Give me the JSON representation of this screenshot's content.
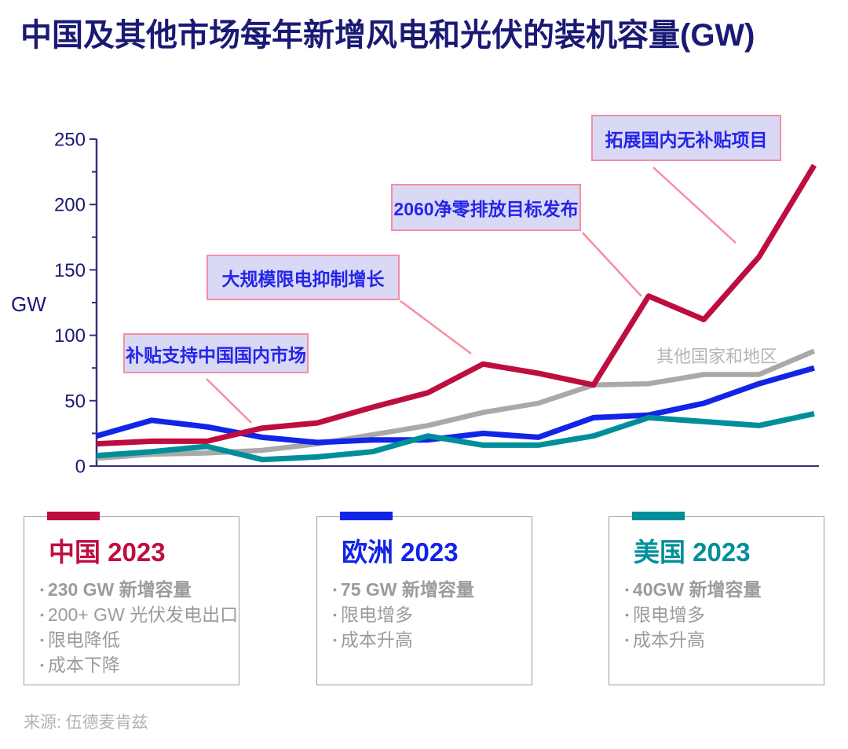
{
  "title": "中国及其他市场每年新增风电和光伏的装机容量(GW)",
  "source": "来源: 伍德麦肯兹",
  "colors": {
    "title_navy": "#1a1a75",
    "axis_navy": "#32327c",
    "china_red": "#be0d3f",
    "europe_blue": "#1224e8",
    "us_teal": "#008f9a",
    "other_gray": "#a9a9a9",
    "annotation_bg": "#d9d9f5",
    "annotation_border": "#f78da2",
    "annotation_text": "#2525e8",
    "leader_pink": "#f78da2",
    "card_text_gray": "#9b9b9b",
    "source_gray": "#b3b3b3"
  },
  "chart_data": {
    "type": "line",
    "title": "",
    "xlabel": "",
    "ylabel": "GW",
    "ylim": [
      0,
      250
    ],
    "y_major_ticks": [
      0,
      50,
      100,
      150,
      200,
      250
    ],
    "y_minor_tick_step": 25,
    "x_tick_labels_shown": false,
    "grid": false,
    "n_points": 14,
    "series": [
      {
        "name": "中国",
        "color": "#be0d3f",
        "values": [
          17,
          19,
          19,
          29,
          33,
          45,
          56,
          78,
          71,
          62,
          130,
          112,
          160,
          230
        ]
      },
      {
        "name": "欧洲",
        "color": "#1224e8",
        "values": [
          23,
          35,
          30,
          22,
          18,
          20,
          20,
          25,
          22,
          37,
          39,
          48,
          63,
          75
        ]
      },
      {
        "name": "美国",
        "color": "#008f9a",
        "values": [
          8,
          11,
          15,
          5,
          7,
          11,
          23,
          16,
          16,
          23,
          37,
          34,
          31,
          40
        ]
      },
      {
        "name": "其他国家和地区",
        "color": "#a9a9a9",
        "values": [
          6,
          9,
          10,
          12,
          17,
          24,
          31,
          41,
          48,
          62,
          63,
          70,
          70,
          88
        ]
      }
    ],
    "inline_series_label": "其他国家和地区",
    "annotations": [
      {
        "text": "补贴支持中国国内市场"
      },
      {
        "text": "大规模限电抑制增长"
      },
      {
        "text": "2060净零排放目标发布"
      },
      {
        "text": "拓展国内无补贴项目"
      }
    ],
    "legend_position": "bottom-cards"
  },
  "cards": [
    {
      "region": "中国",
      "year": "2023",
      "color": "#be0d3f",
      "bullets": [
        "230 GW 新增容量",
        "200+ GW 光伏发电出口",
        "限电降低",
        "成本下降"
      ]
    },
    {
      "region": "欧洲",
      "year": "2023",
      "color": "#1224e8",
      "bullets": [
        "75 GW 新增容量",
        "限电增多",
        "成本升高"
      ]
    },
    {
      "region": "美国",
      "year": "2023",
      "color": "#008f9a",
      "bullets": [
        "40GW 新增容量",
        "限电增多",
        "成本升高"
      ]
    }
  ]
}
